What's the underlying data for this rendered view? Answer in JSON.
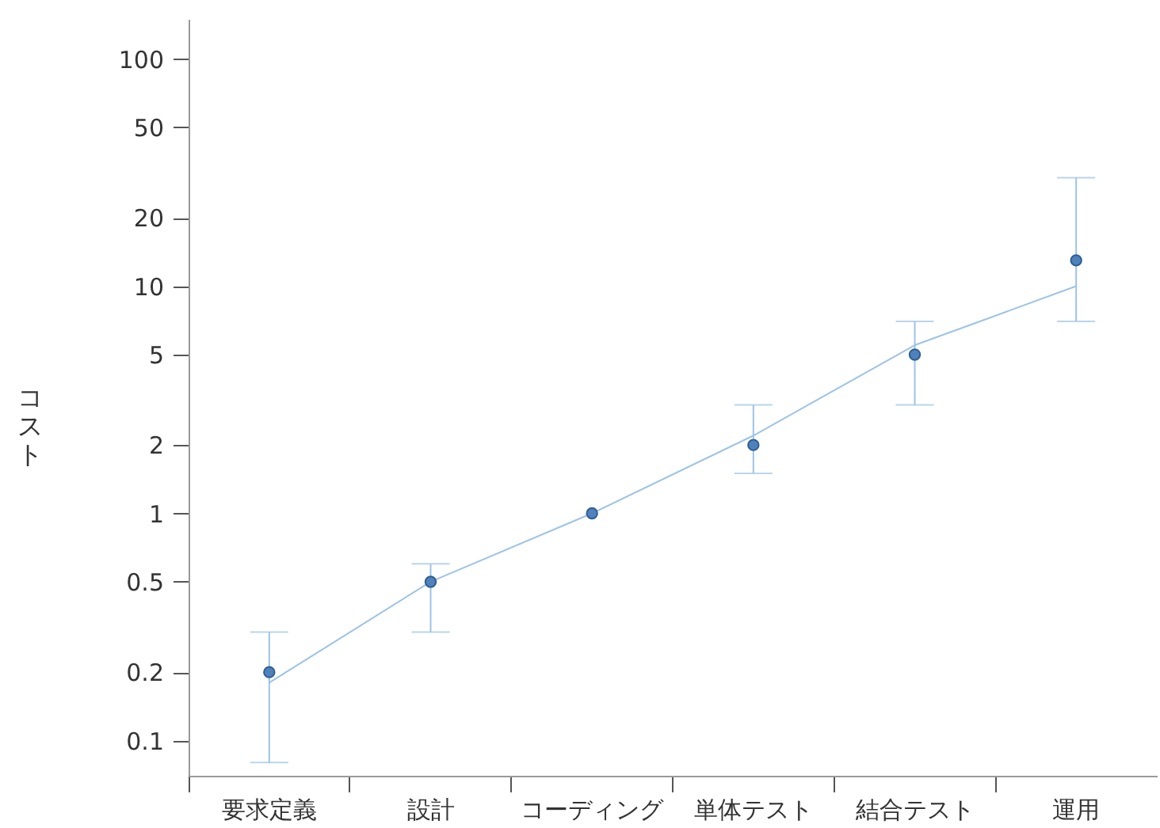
{
  "chart_data": {
    "type": "scatter",
    "ylabel": "コスト",
    "categories": [
      "要求定義",
      "設計",
      "コーディング",
      "単体テスト",
      "結合テスト",
      "運用"
    ],
    "series": [
      {
        "type": "line",
        "color": "#9dc3e6",
        "values": [
          0.18,
          0.5,
          1,
          2.2,
          5.5,
          10
        ],
        "marker": "none"
      },
      {
        "color": "#4f81bd",
        "values": [
          0.2,
          0.5,
          1,
          2,
          5,
          13
        ],
        "marker": "circle",
        "errors": [
          [
            0.08,
            0.3
          ],
          [
            0.3,
            0.6
          ],
          null,
          [
            1.5,
            3
          ],
          [
            3,
            7
          ],
          [
            7,
            30
          ]
        ]
      }
    ],
    "log": true,
    "ylim": [
      0.07,
      150
    ],
    "yticks": [
      0.1,
      0.2,
      0.5,
      1,
      2,
      5,
      10,
      20,
      50,
      100
    ],
    "grid": false
  }
}
